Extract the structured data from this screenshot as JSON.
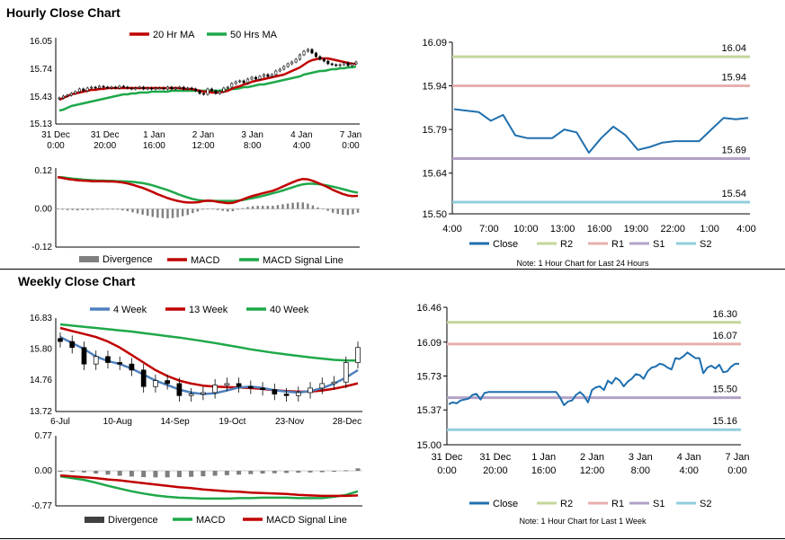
{
  "titles": {
    "hourly": "Hourly Close Chart",
    "weekly": "Weekly Close Chart"
  },
  "colors": {
    "ma_short": "#c00000",
    "ma_long": "#1fa84a",
    "ma_4wk": "#4f81bd",
    "close": "#1f6fae",
    "r2": "#c3d69b",
    "r1": "#e6b0ae",
    "s1": "#b3a2c7",
    "s2": "#92cddc",
    "candle": "#000000",
    "bar": "#7f7f7f"
  },
  "chart_data": [
    {
      "id": "hourly_price",
      "type": "candlestick",
      "legend": [
        "20 Hr MA",
        "50 Hrs MA"
      ],
      "x_ticks": [
        "31 Dec\n0:00",
        "31 Dec\n20:00",
        "1 Jan\n16:00",
        "2 Jan\n12:00",
        "3 Jan\n8:00",
        "4 Jan\n4:00",
        "7 Jan\n0:00"
      ],
      "y_ticks": [
        "16.05",
        "15.74",
        "15.43",
        "15.13"
      ],
      "ylim": [
        15.13,
        16.05
      ],
      "close": [
        15.42,
        15.44,
        15.45,
        15.47,
        15.49,
        15.52,
        15.5,
        15.53,
        15.54,
        15.53,
        15.55,
        15.54,
        15.53,
        15.54,
        15.53,
        15.55,
        15.54,
        15.53,
        15.52,
        15.53,
        15.54,
        15.52,
        15.53,
        15.52,
        15.53,
        15.53,
        15.52,
        15.54,
        15.52,
        15.53,
        15.54,
        15.52,
        15.53,
        15.52,
        15.5,
        15.47,
        15.46,
        15.52,
        15.5,
        15.47,
        15.49,
        15.53,
        15.54,
        15.58,
        15.6,
        15.61,
        15.59,
        15.63,
        15.65,
        15.63,
        15.66,
        15.68,
        15.66,
        15.68,
        15.72,
        15.74,
        15.77,
        15.8,
        15.82,
        15.85,
        15.9,
        15.94,
        15.96,
        15.92,
        15.88,
        15.85,
        15.83,
        15.8,
        15.79,
        15.78,
        15.79,
        15.81,
        15.78,
        15.8,
        15.82
      ],
      "ma20": [
        15.4,
        15.42,
        15.44,
        15.46,
        15.47,
        15.48,
        15.49,
        15.5,
        15.51,
        15.51,
        15.52,
        15.52,
        15.53,
        15.53,
        15.53,
        15.53,
        15.53,
        15.53,
        15.53,
        15.53,
        15.53,
        15.53,
        15.53,
        15.53,
        15.53,
        15.53,
        15.53,
        15.53,
        15.53,
        15.53,
        15.53,
        15.52,
        15.52,
        15.52,
        15.51,
        15.5,
        15.49,
        15.49,
        15.48,
        15.48,
        15.48,
        15.49,
        15.5,
        15.52,
        15.54,
        15.55,
        15.57,
        15.58,
        15.6,
        15.61,
        15.62,
        15.63,
        15.64,
        15.65,
        15.66,
        15.67,
        15.68,
        15.7,
        15.72,
        15.74,
        15.76,
        15.79,
        15.82,
        15.84,
        15.85,
        15.86,
        15.86,
        15.86,
        15.85,
        15.84,
        15.83,
        15.82,
        15.81,
        15.8,
        15.8
      ],
      "ma50": [
        15.28,
        15.29,
        15.31,
        15.33,
        15.34,
        15.35,
        15.36,
        15.37,
        15.38,
        15.39,
        15.4,
        15.41,
        15.42,
        15.43,
        15.44,
        15.45,
        15.46,
        15.46,
        15.47,
        15.47,
        15.48,
        15.48,
        15.48,
        15.49,
        15.49,
        15.49,
        15.49,
        15.49,
        15.5,
        15.5,
        15.5,
        15.5,
        15.5,
        15.5,
        15.5,
        15.5,
        15.5,
        15.5,
        15.5,
        15.5,
        15.5,
        15.51,
        15.51,
        15.52,
        15.52,
        15.53,
        15.54,
        15.54,
        15.55,
        15.56,
        15.57,
        15.57,
        15.58,
        15.59,
        15.6,
        15.61,
        15.62,
        15.63,
        15.64,
        15.65,
        15.66,
        15.68,
        15.69,
        15.7,
        15.71,
        15.72,
        15.72,
        15.73,
        15.74,
        15.74,
        15.75,
        15.75,
        15.76,
        15.76,
        15.77
      ]
    },
    {
      "id": "hourly_macd",
      "type": "line+bar",
      "legend": [
        "Divergence",
        "MACD",
        "MACD Signal Line"
      ],
      "y_ticks": [
        "0.12",
        "0.00",
        "-0.12"
      ],
      "ylim": [
        -0.12,
        0.12
      ],
      "macd": [
        0.1,
        0.097,
        0.094,
        0.092,
        0.09,
        0.089,
        0.088,
        0.087,
        0.087,
        0.087,
        0.086,
        0.086,
        0.085,
        0.083,
        0.08,
        0.076,
        0.071,
        0.066,
        0.06,
        0.053,
        0.046,
        0.04,
        0.034,
        0.029,
        0.025,
        0.022,
        0.02,
        0.02,
        0.021,
        0.024,
        0.026,
        0.025,
        0.022,
        0.02,
        0.018,
        0.019,
        0.024,
        0.03,
        0.036,
        0.041,
        0.045,
        0.049,
        0.053,
        0.057,
        0.063,
        0.07,
        0.077,
        0.084,
        0.09,
        0.094,
        0.093,
        0.088,
        0.082,
        0.075,
        0.068,
        0.06,
        0.053,
        0.047,
        0.042,
        0.04,
        0.041
      ],
      "signal": [
        0.1,
        0.099,
        0.097,
        0.095,
        0.094,
        0.092,
        0.091,
        0.09,
        0.089,
        0.089,
        0.088,
        0.088,
        0.087,
        0.087,
        0.086,
        0.085,
        0.083,
        0.081,
        0.078,
        0.074,
        0.069,
        0.064,
        0.059,
        0.053,
        0.047,
        0.041,
        0.036,
        0.031,
        0.028,
        0.026,
        0.025,
        0.025,
        0.025,
        0.025,
        0.025,
        0.025,
        0.026,
        0.028,
        0.031,
        0.034,
        0.037,
        0.041,
        0.045,
        0.049,
        0.053,
        0.058,
        0.063,
        0.068,
        0.073,
        0.077,
        0.079,
        0.079,
        0.078,
        0.076,
        0.073,
        0.07,
        0.066,
        0.062,
        0.058,
        0.054,
        0.051
      ]
    },
    {
      "id": "hourly_levels",
      "type": "line",
      "legend": [
        "Close",
        "R2",
        "R1",
        "S1",
        "S2"
      ],
      "x_ticks": [
        "4:00",
        "7:00",
        "10:00",
        "13:00",
        "16:00",
        "19:00",
        "22:00",
        "1:00",
        "4:00"
      ],
      "y_ticks": [
        "16.09",
        "15.94",
        "15.79",
        "15.64",
        "15.50"
      ],
      "ylim": [
        15.5,
        16.09
      ],
      "levels": {
        "R2": 16.04,
        "R1": 15.94,
        "S1": 15.69,
        "S2": 15.54
      },
      "level_labels": [
        "16.04",
        "15.94",
        "15.69",
        "15.54"
      ],
      "close": [
        15.86,
        15.855,
        15.85,
        15.82,
        15.84,
        15.77,
        15.76,
        15.76,
        15.76,
        15.79,
        15.78,
        15.71,
        15.76,
        15.8,
        15.77,
        15.72,
        15.73,
        15.745,
        15.75,
        15.75,
        15.75,
        15.79,
        15.83,
        15.825,
        15.83
      ],
      "note": "Note: 1 Hour Chart for Last 24 Hours"
    },
    {
      "id": "weekly_price",
      "type": "candlestick",
      "legend": [
        "4 Week",
        "13 Week",
        "40 Week"
      ],
      "x_ticks": [
        "6-Jul",
        "10-Aug",
        "14-Sep",
        "19-Oct",
        "23-Nov",
        "28-Dec"
      ],
      "y_ticks": [
        "16.83",
        "15.80",
        "14.76",
        "13.72"
      ],
      "ylim": [
        13.72,
        16.83
      ],
      "close": [
        16.05,
        15.85,
        15.3,
        15.55,
        15.35,
        15.3,
        15.1,
        14.55,
        14.75,
        14.65,
        14.25,
        14.3,
        14.35,
        14.6,
        14.65,
        14.55,
        14.5,
        14.45,
        14.3,
        14.25,
        14.35,
        14.5,
        14.65,
        14.7,
        15.35,
        15.85
      ],
      "wk4": [
        16.2,
        16.0,
        15.8,
        15.55,
        15.4,
        15.3,
        15.15,
        14.95,
        14.75,
        14.6,
        14.45,
        14.35,
        14.3,
        14.33,
        14.42,
        14.52,
        14.55,
        14.5,
        14.43,
        14.38,
        14.35,
        14.4,
        14.5,
        14.65,
        14.85,
        15.1
      ],
      "wk13": [
        16.5,
        16.4,
        16.3,
        16.2,
        16.05,
        15.85,
        15.6,
        15.35,
        15.1,
        14.9,
        14.75,
        14.65,
        14.58,
        14.55,
        14.53,
        14.52,
        14.5,
        14.47,
        14.43,
        14.4,
        14.38,
        14.38,
        14.42,
        14.48,
        14.56,
        14.66
      ],
      "wk40": [
        16.62,
        16.58,
        16.54,
        16.5,
        16.46,
        16.42,
        16.38,
        16.33,
        16.28,
        16.23,
        16.18,
        16.12,
        16.06,
        16.0,
        15.93,
        15.86,
        15.79,
        15.73,
        15.67,
        15.62,
        15.57,
        15.52,
        15.48,
        15.44,
        15.42,
        15.42
      ]
    },
    {
      "id": "weekly_macd",
      "type": "line+bar",
      "legend": [
        "Divergence",
        "MACD",
        "MACD Signal Line"
      ],
      "y_ticks": [
        "0.77",
        "0.00",
        "-0.77"
      ],
      "ylim": [
        -0.77,
        0.77
      ],
      "macd": [
        -0.12,
        -0.16,
        -0.2,
        -0.26,
        -0.33,
        -0.39,
        -0.45,
        -0.5,
        -0.54,
        -0.57,
        -0.59,
        -0.6,
        -0.61,
        -0.61,
        -0.61,
        -0.6,
        -0.6,
        -0.59,
        -0.59,
        -0.59,
        -0.6,
        -0.6,
        -0.6,
        -0.57,
        -0.53,
        -0.45
      ],
      "signal": [
        -0.1,
        -0.12,
        -0.14,
        -0.16,
        -0.19,
        -0.21,
        -0.24,
        -0.27,
        -0.3,
        -0.33,
        -0.36,
        -0.38,
        -0.41,
        -0.43,
        -0.45,
        -0.46,
        -0.48,
        -0.49,
        -0.5,
        -0.51,
        -0.53,
        -0.54,
        -0.55,
        -0.55,
        -0.55,
        -0.54
      ]
    },
    {
      "id": "weekly_levels",
      "type": "line",
      "legend": [
        "Close",
        "R2",
        "R1",
        "S1",
        "S2"
      ],
      "x_ticks": [
        "31 Dec\n0:00",
        "31 Dec\n20:00",
        "1 Jan\n16:00",
        "2 Jan\n12:00",
        "3 Jan\n8:00",
        "4 Jan\n4:00",
        "7 Jan\n0:00"
      ],
      "y_ticks": [
        "16.46",
        "16.09",
        "15.73",
        "15.37",
        "15.00"
      ],
      "ylim": [
        15.0,
        16.46
      ],
      "levels": {
        "R2": 16.3,
        "R1": 16.07,
        "S1": 15.5,
        "S2": 15.16
      },
      "level_labels": [
        "16.30",
        "16.07",
        "15.50",
        "15.16"
      ],
      "close": [
        15.43,
        15.45,
        15.44,
        15.47,
        15.48,
        15.49,
        15.53,
        15.54,
        15.48,
        15.55,
        15.56,
        15.56,
        15.56,
        15.56,
        15.56,
        15.56,
        15.56,
        15.56,
        15.56,
        15.56,
        15.56,
        15.56,
        15.56,
        15.56,
        15.56,
        15.56,
        15.56,
        15.56,
        15.5,
        15.42,
        15.46,
        15.47,
        15.53,
        15.56,
        15.52,
        15.45,
        15.58,
        15.61,
        15.62,
        15.58,
        15.68,
        15.65,
        15.71,
        15.68,
        15.62,
        15.67,
        15.7,
        15.75,
        15.74,
        15.7,
        15.78,
        15.82,
        15.83,
        15.86,
        15.85,
        15.82,
        15.8,
        15.92,
        15.91,
        15.94,
        15.98,
        15.95,
        15.92,
        15.92,
        15.76,
        15.82,
        15.84,
        15.81,
        15.85,
        15.77,
        15.78,
        15.83,
        15.86,
        15.86
      ],
      "note": "Note: 1 Hour Chart for Last 1 Week"
    }
  ]
}
